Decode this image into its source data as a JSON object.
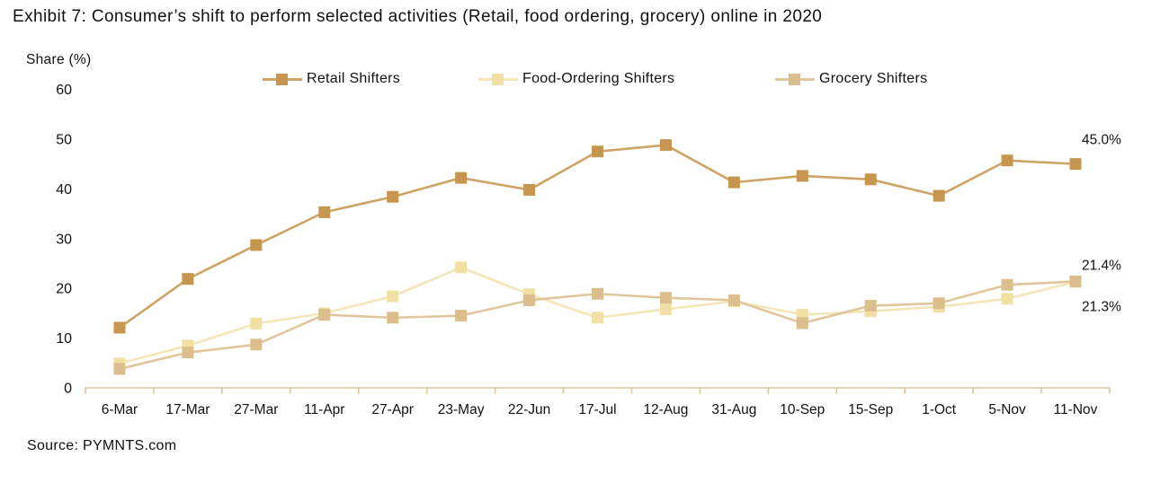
{
  "title": "Exhibit 7: Consumer’s shift to perform selected activities (Retail, food ordering, grocery) online in 2020",
  "source": "Source: PYMNTS.com",
  "colors": {
    "axis": "#d8c79f",
    "text": "#111111"
  },
  "chart_data": {
    "type": "line",
    "title": "Consumer's shift to perform selected activities online in 2020",
    "ylabel": "Share (%)",
    "xlabel": "",
    "ylim": [
      0,
      60
    ],
    "yticks": [
      0,
      10,
      20,
      30,
      40,
      50,
      60
    ],
    "grid": false,
    "legend_position": "top",
    "categories": [
      "6-Mar",
      "17-Mar",
      "27-Mar",
      "11-Apr",
      "27-Apr",
      "23-May",
      "22-Jun",
      "17-Jul",
      "12-Aug",
      "31-Aug",
      "10-Sep",
      "15-Sep",
      "1-Oct",
      "5-Nov",
      "11-Nov"
    ],
    "series": [
      {
        "name": "Retail Shifters",
        "color": "#c6964e",
        "line_color": "#cda366",
        "values": [
          12.1,
          21.9,
          28.7,
          35.3,
          38.4,
          42.2,
          39.8,
          47.5,
          48.8,
          41.3,
          42.6,
          41.9,
          38.6,
          45.7,
          45.0
        ],
        "end_label": "45.0%",
        "end_label_anchor_value": 50.0
      },
      {
        "name": "Food-Ordering Shifters",
        "color": "#f1dfa4",
        "line_color": "#f4e6b8",
        "values": [
          4.9,
          8.5,
          12.9,
          15.0,
          18.4,
          24.2,
          18.8,
          14.1,
          15.8,
          17.4,
          14.7,
          15.4,
          16.3,
          17.9,
          21.3
        ],
        "end_label": "21.3%",
        "end_label_anchor_value": 16.4
      },
      {
        "name": "Grocery Shifters",
        "color": "#dcbe8e",
        "line_color": "#e0c69d",
        "values": [
          3.8,
          7.1,
          8.7,
          14.7,
          14.1,
          14.5,
          17.6,
          18.9,
          18.1,
          17.6,
          13.0,
          16.5,
          17.0,
          20.7,
          21.4
        ],
        "end_label": "21.4%",
        "end_label_anchor_value": 24.7
      }
    ]
  }
}
